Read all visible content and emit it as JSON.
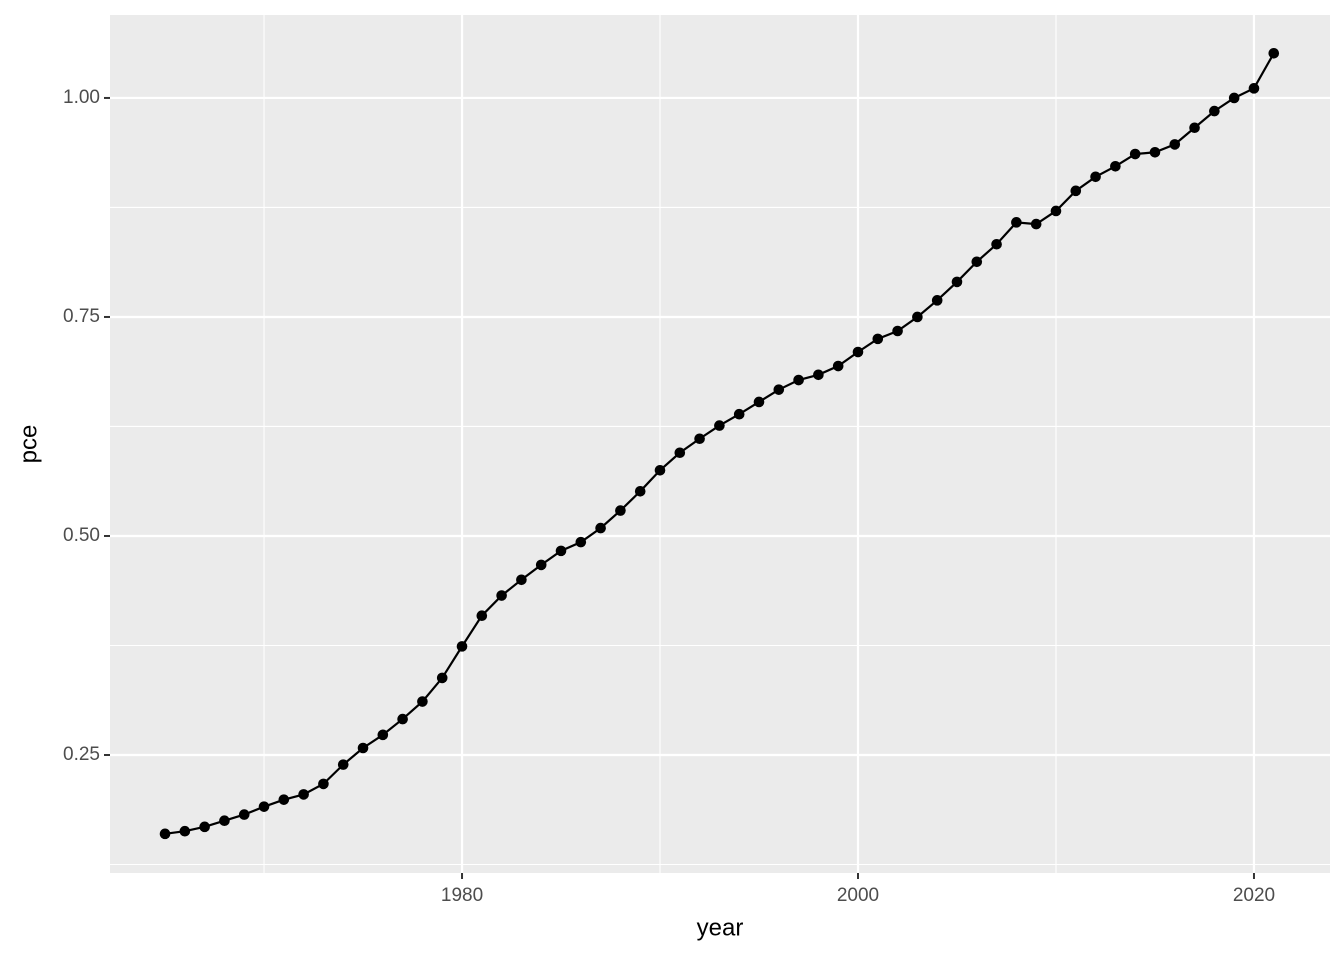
{
  "chart_data": {
    "type": "line",
    "x_label": "year",
    "y_label": "pce",
    "x": [
      1965,
      1966,
      1967,
      1968,
      1969,
      1970,
      1971,
      1972,
      1973,
      1974,
      1975,
      1976,
      1977,
      1978,
      1979,
      1980,
      1981,
      1982,
      1983,
      1984,
      1985,
      1986,
      1987,
      1988,
      1989,
      1990,
      1991,
      1992,
      1993,
      1994,
      1995,
      1996,
      1997,
      1998,
      1999,
      2000,
      2001,
      2002,
      2003,
      2004,
      2005,
      2006,
      2007,
      2008,
      2009,
      2010,
      2011,
      2012,
      2013,
      2014,
      2015,
      2016,
      2017,
      2018,
      2019,
      2020,
      2021
    ],
    "series": [
      {
        "color": "#000000",
        "markers": true,
        "values": [
          0.16,
          0.163,
          0.168,
          0.175,
          0.182,
          0.191,
          0.199,
          0.205,
          0.217,
          0.239,
          0.258,
          0.273,
          0.291,
          0.311,
          0.338,
          0.374,
          0.409,
          0.432,
          0.45,
          0.467,
          0.483,
          0.493,
          0.509,
          0.529,
          0.551,
          0.575,
          0.595,
          0.611,
          0.626,
          0.639,
          0.653,
          0.667,
          0.678,
          0.684,
          0.694,
          0.71,
          0.725,
          0.734,
          0.75,
          0.769,
          0.79,
          0.813,
          0.833,
          0.858,
          0.856,
          0.871,
          0.894,
          0.91,
          0.922,
          0.936,
          0.938,
          0.947,
          0.966,
          0.985,
          1.0,
          1.011,
          1.051
        ]
      }
    ],
    "xlim": [
      1962.22,
      2023.84
    ],
    "xticks": [
      1980,
      2000,
      2020
    ],
    "ylim": [
      0.1153,
      1.0947
    ],
    "yticks": [
      {
        "value": 0.25,
        "label": "0.25"
      },
      {
        "value": 0.5,
        "label": "0.50"
      },
      {
        "value": 0.75,
        "label": "0.75"
      },
      {
        "value": 1,
        "label": "1.00"
      }
    ],
    "grid": true
  }
}
